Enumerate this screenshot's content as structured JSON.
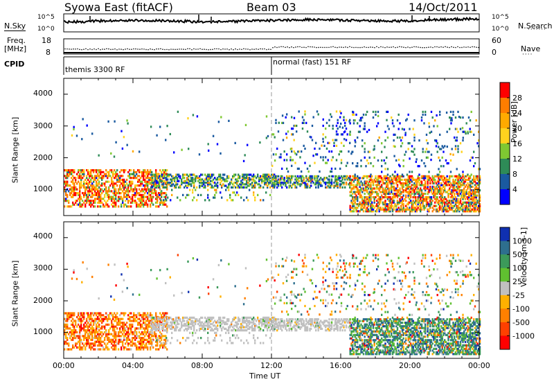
{
  "header": {
    "station": "Syowa East (fitACF)",
    "beam": "Beam 03",
    "date": "14/Oct/2011"
  },
  "noise_panel": {
    "left_label": "N.Sky",
    "right_label": "N.Search",
    "top_tick": "10^5",
    "bottom_tick": "10^0"
  },
  "freq_panel": {
    "left_label_1": "Freq.",
    "left_label_2": "[MHz]",
    "right_label": "Nave",
    "left_ticks": [
      "18",
      "8"
    ],
    "right_ticks": [
      "60",
      "0"
    ]
  },
  "cpid": {
    "label": "CPID",
    "mode_1": "themis 3300 RF",
    "mode_2": "normal (fast) 151 RF"
  },
  "x_axis": {
    "label": "Time UT",
    "ticks": [
      "00:00",
      "04:00",
      "08:00",
      "12:00",
      "16:00",
      "20:00",
      "00:00"
    ]
  },
  "chart_data": [
    {
      "type": "heatmap",
      "title": "Power",
      "ylabel": "Slant Range [km]",
      "colorbar_label": "Power [dB]",
      "colorbar_ticks": [
        "28",
        "24",
        "20",
        "16",
        "12",
        "8",
        "4"
      ],
      "colorbar_colors": [
        "#ff0000",
        "#ff7d00",
        "#ffaa00",
        "#ffd21e",
        "#7fc832",
        "#2e8b57",
        "#1a5aa0",
        "#0000ff"
      ],
      "ylim": [
        180,
        4500
      ],
      "yticks": [
        "4000",
        "3000",
        "2000",
        "1000"
      ],
      "xlim_hours": [
        0,
        24
      ]
    },
    {
      "type": "heatmap",
      "title": "Velocity",
      "ylabel": "Slant Range [km]",
      "colorbar_label": "Velocity [m s-1]",
      "colorbar_ticks": [
        "1000",
        "500",
        "100",
        "25",
        "-25",
        "-100",
        "-500",
        "-1000"
      ],
      "colorbar_colors": [
        "#1030b0",
        "#2e6f8e",
        "#3c9a5a",
        "#60c030",
        "#c0c0c0",
        "#ffb000",
        "#ff8000",
        "#ff4000",
        "#ff0000"
      ],
      "ylim": [
        180,
        4500
      ],
      "yticks": [
        "4000",
        "3000",
        "2000",
        "1000"
      ],
      "xlim_hours": [
        0,
        24
      ]
    }
  ]
}
